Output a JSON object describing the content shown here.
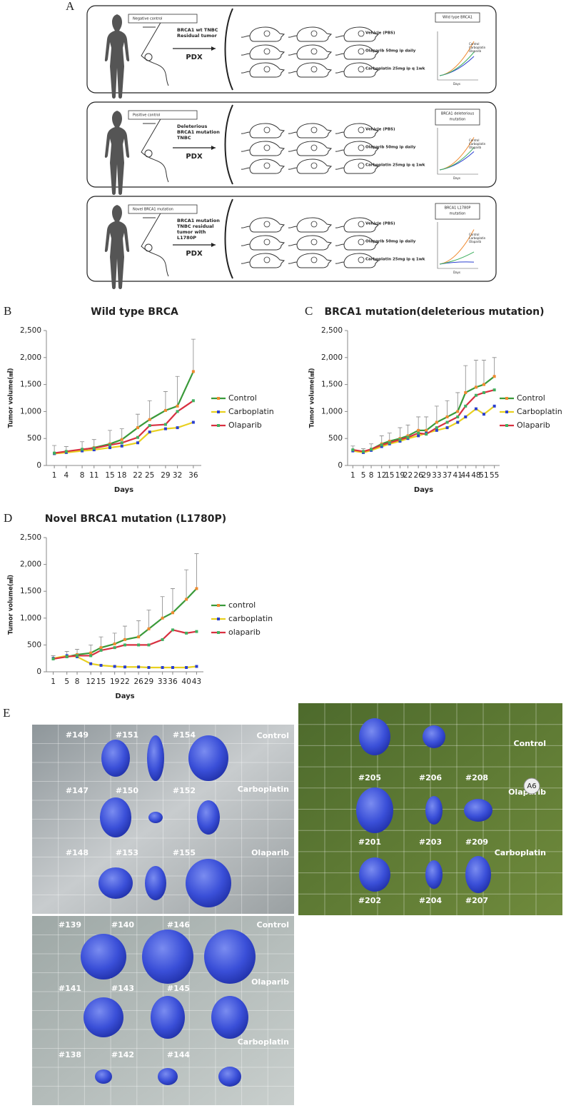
{
  "panel_a": {
    "label": "A",
    "rows": [
      {
        "group": "Negative control",
        "tumor": [
          "BRCA1 wt TNBC",
          "Residual tumor"
        ],
        "model": "PDX",
        "treatments": [
          "Vehicle (PBS)",
          "Olaparib 50mg ip daily",
          "Carboplatin 25mg ip q 1wk"
        ],
        "chart_title": [
          "Wild type BRCA1"
        ]
      },
      {
        "group": "Positive control",
        "tumor": [
          "Deleterious",
          "BRCA1 mutation",
          "TNBC"
        ],
        "model": "PDX",
        "treatments": [
          "Vehicle (PBS)",
          "Olaparib 50mg ip daily",
          "Carboplatin 25mg ip q 1wk"
        ],
        "chart_title": [
          "BRCA1 deleterious",
          "mutation"
        ]
      },
      {
        "group": "Novel BRCA1 mutation",
        "tumor": [
          "BRCA1 mutation",
          "TNBC residual",
          "tumor with",
          "L1780P"
        ],
        "model": "PDX",
        "treatments": [
          "Vehicle (PBS)",
          "Olaparib 50mg ip daily",
          "Carboplatin 25mg ip q 1wk"
        ],
        "chart_title": [
          "BRCA1 L1780P",
          "mutation"
        ]
      }
    ],
    "mini_legend": [
      "Control",
      "Carboplatin",
      "Olaparib"
    ],
    "mini_axis": "Days"
  },
  "chart_data": [
    {
      "type": "line",
      "panel_label": "B",
      "title": "Wild type BRCA",
      "x_label": "Days",
      "y_label": "Tumor volume(㎣)",
      "x": [
        1,
        4,
        8,
        11,
        15,
        18,
        22,
        25,
        29,
        32,
        36
      ],
      "xticks": [
        1,
        4,
        8,
        11,
        15,
        18,
        22,
        25,
        29,
        32,
        36
      ],
      "xlim": [
        -1,
        38
      ],
      "ylim": [
        0,
        2500
      ],
      "yticks": [
        0,
        500,
        {
          "value": 1000,
          "label": "1,000"
        },
        {
          "value": 1500,
          "label": "1,500"
        },
        {
          "value": 2000,
          "label": "2,000"
        },
        {
          "value": 2500,
          "label": "2,500"
        }
      ],
      "series": [
        {
          "name": "Control",
          "color": "#3a9a3a",
          "marker_color": "#f08a30",
          "values": [
            220,
            250,
            290,
            330,
            400,
            480,
            700,
            850,
            1020,
            1100,
            1740
          ],
          "error": [
            150,
            100,
            150,
            150,
            250,
            200,
            250,
            350,
            350,
            550,
            600
          ]
        },
        {
          "name": "Carboplatin",
          "color": "#e8d020",
          "marker_color": "#2a3fd0",
          "values": [
            220,
            240,
            270,
            290,
            330,
            360,
            420,
            620,
            680,
            700,
            800
          ]
        },
        {
          "name": "Olaparib",
          "color": "#d83040",
          "marker_color": "#40b060",
          "values": [
            230,
            260,
            300,
            320,
            380,
            420,
            520,
            740,
            760,
            1000,
            1200
          ]
        }
      ]
    },
    {
      "type": "line",
      "panel_label": "C",
      "title": "BRCA1 mutation(deleterious mutation)",
      "x_label": "Days",
      "y_label": "Tumor volume(㎣)",
      "x": [
        1,
        5,
        8,
        12,
        15,
        19,
        22,
        26,
        29,
        33,
        37,
        41,
        44,
        48,
        51,
        55
      ],
      "xticks": [
        1,
        5,
        8,
        12,
        15,
        19,
        22,
        26,
        29,
        33,
        37,
        41,
        44,
        48,
        51,
        55
      ],
      "xlim": [
        -1,
        57
      ],
      "ylim": [
        0,
        2500
      ],
      "yticks": [
        0,
        500,
        {
          "value": 1000,
          "label": "1,000"
        },
        {
          "value": 1500,
          "label": "1,500"
        },
        {
          "value": 2000,
          "label": "2,000"
        },
        {
          "value": 2500,
          "label": "2,500"
        }
      ],
      "series": [
        {
          "name": "Control",
          "color": "#3a9a3a",
          "marker_color": "#f08a30",
          "values": [
            280,
            250,
            300,
            400,
            450,
            500,
            550,
            650,
            650,
            800,
            900,
            1000,
            1350,
            1450,
            1500,
            1650
          ],
          "error": [
            80,
            60,
            100,
            150,
            150,
            200,
            200,
            250,
            250,
            300,
            300,
            350,
            500,
            500,
            450,
            350
          ]
        },
        {
          "name": "Carboplatin",
          "color": "#e8d020",
          "marker_color": "#2a3fd0",
          "values": [
            270,
            240,
            280,
            350,
            400,
            450,
            500,
            550,
            600,
            650,
            700,
            800,
            900,
            1050,
            950,
            1100
          ]
        },
        {
          "name": "Olaparib",
          "color": "#d83040",
          "marker_color": "#40b060",
          "values": [
            290,
            260,
            300,
            380,
            420,
            480,
            520,
            600,
            580,
            700,
            800,
            900,
            1100,
            1300,
            1350,
            1400
          ]
        }
      ]
    },
    {
      "type": "line",
      "panel_label": "D",
      "title": "Novel BRCA1 mutation (L1780P)",
      "x_label": "Days",
      "y_label": "Tumor volume(㎣)",
      "x": [
        1,
        5,
        8,
        12,
        15,
        19,
        22,
        26,
        29,
        33,
        36,
        40,
        43
      ],
      "xticks": [
        1,
        5,
        8,
        12,
        15,
        19,
        22,
        26,
        29,
        33,
        36,
        40,
        43
      ],
      "xlim": [
        -1,
        45
      ],
      "ylim": [
        0,
        2500
      ],
      "yticks": [
        0,
        500,
        {
          "value": 1000,
          "label": "1,000"
        },
        {
          "value": 1500,
          "label": "1,500"
        },
        {
          "value": 2000,
          "label": "2,000"
        },
        {
          "value": 2500,
          "label": "2,500"
        }
      ],
      "series": [
        {
          "name": "control",
          "color": "#3a9a3a",
          "marker_color": "#f08a30",
          "values": [
            250,
            280,
            320,
            350,
            450,
            520,
            600,
            650,
            800,
            1000,
            1100,
            1350,
            1550
          ],
          "error": [
            50,
            100,
            100,
            150,
            200,
            200,
            250,
            300,
            350,
            400,
            450,
            550,
            650
          ]
        },
        {
          "name": "carboplatin",
          "color": "#e8d020",
          "marker_color": "#2a3fd0",
          "values": [
            250,
            300,
            280,
            150,
            120,
            100,
            90,
            90,
            80,
            80,
            80,
            80,
            100
          ]
        },
        {
          "name": "olaparib",
          "color": "#d83040",
          "marker_color": "#40b060",
          "values": [
            240,
            280,
            300,
            300,
            400,
            450,
            500,
            500,
            500,
            600,
            780,
            720,
            750
          ]
        }
      ]
    }
  ],
  "panel_e": {
    "label": "E",
    "photos": [
      {
        "groups": [
          {
            "name": "Control",
            "ids": [
              "#149",
              "#151",
              "#154"
            ]
          },
          {
            "name": "Carboplatin",
            "ids": [
              "#147",
              "#150",
              "#152"
            ]
          },
          {
            "name": "Olaparib",
            "ids": [
              "#148",
              "#153",
              "#155"
            ]
          }
        ]
      },
      {
        "tag": "A6",
        "groups": [
          {
            "name": "Control",
            "ids": [
              "#205",
              "#206",
              "#208"
            ]
          },
          {
            "name": "Olaparib",
            "ids": [
              "#201",
              "#203",
              "#209"
            ]
          },
          {
            "name": "Carboplatin",
            "ids": [
              "#202",
              "#204",
              "#207"
            ]
          }
        ]
      },
      {
        "groups": [
          {
            "name": "Control",
            "ids": [
              "#139",
              "#140",
              "#146"
            ]
          },
          {
            "name": "Olaparib",
            "ids": [
              "#141",
              "#143",
              "#145"
            ]
          },
          {
            "name": "Carboplatin",
            "ids": [
              "#138",
              "#142",
              "#144"
            ]
          }
        ]
      }
    ]
  }
}
